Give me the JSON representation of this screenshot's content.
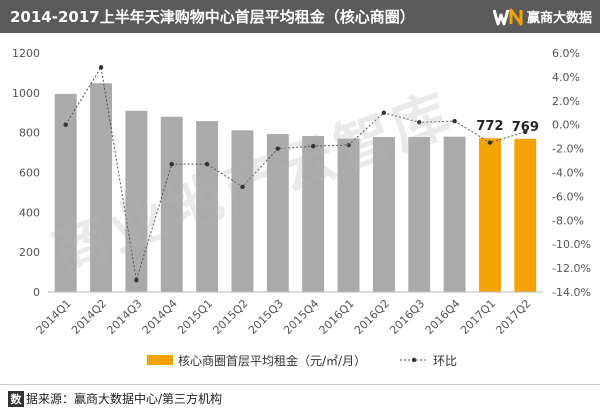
{
  "header": {
    "title": "2014-2017上半年天津购物中心首层平均租金（核心商圈）",
    "brand_name": "赢商大数据"
  },
  "watermark": {
    "text": "商业地产云智库"
  },
  "footer": {
    "source_icon_char": "数",
    "source_text": "据来源：赢商大数据中心/第三方机构"
  },
  "chart_data": {
    "type": "bar",
    "categories": [
      "2014Q1",
      "2014Q2",
      "2014Q3",
      "2014Q4",
      "2015Q1",
      "2015Q2",
      "2015Q3",
      "2015Q4",
      "2016Q1",
      "2016Q2",
      "2016Q3",
      "2016Q4",
      "2017Q1",
      "2017Q2"
    ],
    "series": [
      {
        "name": "核心商圈首层平均租金（元/㎡/月）",
        "type": "bar",
        "axis": "left",
        "values": [
          995,
          1048,
          910,
          880,
          858,
          812,
          793,
          783,
          770,
          778,
          778,
          780,
          772,
          769
        ],
        "highlight_colors": [
          "#aaaaaa",
          "#aaaaaa",
          "#aaaaaa",
          "#aaaaaa",
          "#aaaaaa",
          "#aaaaaa",
          "#aaaaaa",
          "#aaaaaa",
          "#aaaaaa",
          "#aaaaaa",
          "#aaaaaa",
          "#aaaaaa",
          "#f5a300",
          "#f5a300"
        ]
      },
      {
        "name": "环比",
        "type": "line",
        "axis": "right",
        "values": [
          0.0,
          4.8,
          -13.0,
          -3.3,
          -3.3,
          -5.2,
          -2.0,
          -1.8,
          -1.7,
          1.0,
          0.2,
          0.3,
          -1.5,
          -0.6
        ]
      }
    ],
    "data_labels": [
      {
        "index": 12,
        "text": "772"
      },
      {
        "index": 13,
        "text": "769"
      }
    ],
    "left_axis": {
      "ylim": [
        0,
        1200
      ],
      "ticks": [
        0,
        200,
        400,
        600,
        800,
        1000,
        1200
      ],
      "tick_labels": [
        "0",
        "200",
        "400",
        "600",
        "800",
        "1000",
        "1200"
      ]
    },
    "right_axis": {
      "ylim": [
        -14,
        6
      ],
      "ticks": [
        6,
        4,
        2,
        0,
        -2,
        -4,
        -6,
        -8,
        -10,
        -12,
        -14
      ],
      "tick_labels": [
        "6.0%",
        "4.0%",
        "2.0%",
        "0.0%",
        "-2.0%",
        "-4.0%",
        "-6.0%",
        "-8.0%",
        "-10.0%",
        "-12.0%",
        "-14.0%"
      ]
    },
    "legend": {
      "placement": "bottom",
      "bar_label": "核心商圈首层平均租金（元/㎡/月）",
      "line_label": "环比"
    },
    "colors": {
      "bar": "#aaaaaa",
      "bar_highlight": "#f5a300",
      "line": "#555555",
      "axis_text": "#555555"
    },
    "grid": false
  }
}
